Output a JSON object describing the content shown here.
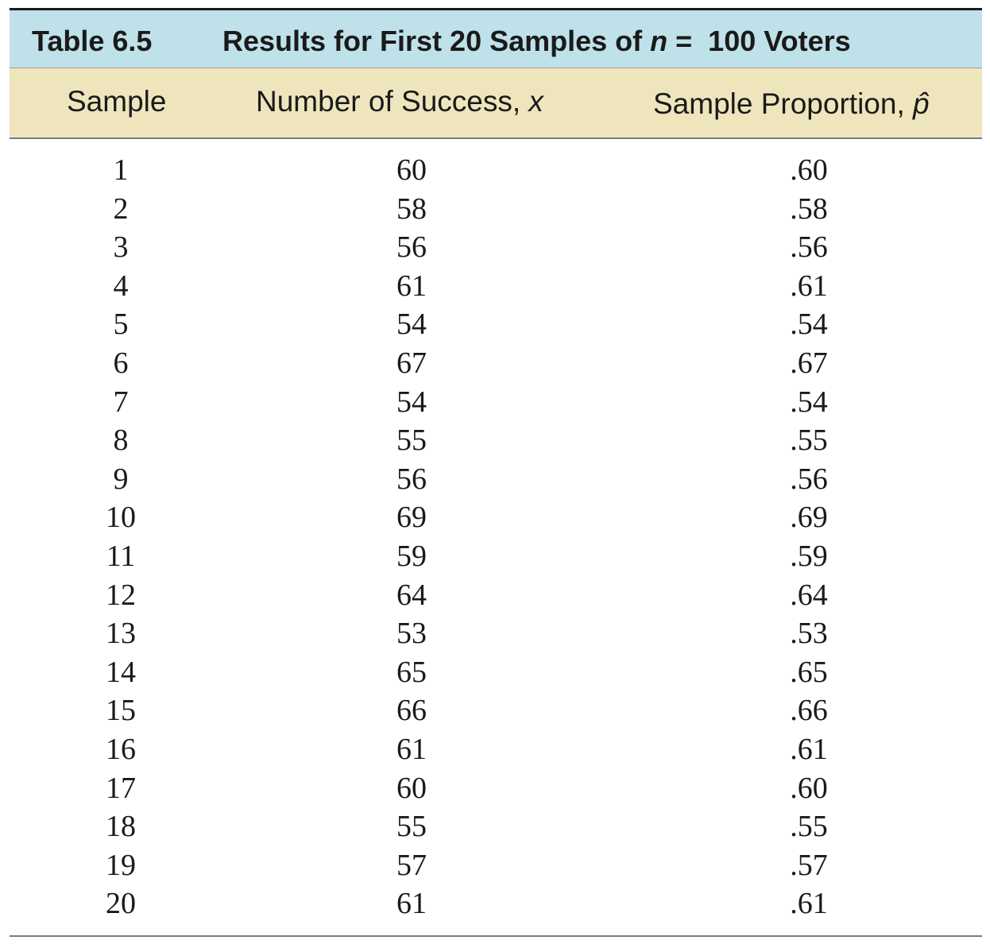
{
  "table": {
    "label": "Table 6.5",
    "caption_prefix": "Results for First 20 Samples of ",
    "caption_var": "n",
    "caption_suffix": " =  100 Voters",
    "columns": {
      "sample": "Sample",
      "success_text": "Number of Success, ",
      "success_var": "x",
      "proportion_text": "Sample Proportion, ",
      "proportion_var": "p̂"
    },
    "rows": [
      {
        "sample": "1",
        "x": "60",
        "p": ".60"
      },
      {
        "sample": "2",
        "x": "58",
        "p": ".58"
      },
      {
        "sample": "3",
        "x": "56",
        "p": ".56"
      },
      {
        "sample": "4",
        "x": "61",
        "p": ".61"
      },
      {
        "sample": "5",
        "x": "54",
        "p": ".54"
      },
      {
        "sample": "6",
        "x": "67",
        "p": ".67"
      },
      {
        "sample": "7",
        "x": "54",
        "p": ".54"
      },
      {
        "sample": "8",
        "x": "55",
        "p": ".55"
      },
      {
        "sample": "9",
        "x": "56",
        "p": ".56"
      },
      {
        "sample": "10",
        "x": "69",
        "p": ".69"
      },
      {
        "sample": "11",
        "x": "59",
        "p": ".59"
      },
      {
        "sample": "12",
        "x": "64",
        "p": ".64"
      },
      {
        "sample": "13",
        "x": "53",
        "p": ".53"
      },
      {
        "sample": "14",
        "x": "65",
        "p": ".65"
      },
      {
        "sample": "15",
        "x": "66",
        "p": ".66"
      },
      {
        "sample": "16",
        "x": "61",
        "p": ".61"
      },
      {
        "sample": "17",
        "x": "60",
        "p": ".60"
      },
      {
        "sample": "18",
        "x": "55",
        "p": ".55"
      },
      {
        "sample": "19",
        "x": "57",
        "p": ".57"
      },
      {
        "sample": "20",
        "x": "61",
        "p": ".61"
      }
    ]
  },
  "colors": {
    "title_bar": "#bfe1e9",
    "header_bar": "#efe5bd",
    "text": "#1a1a1a"
  }
}
